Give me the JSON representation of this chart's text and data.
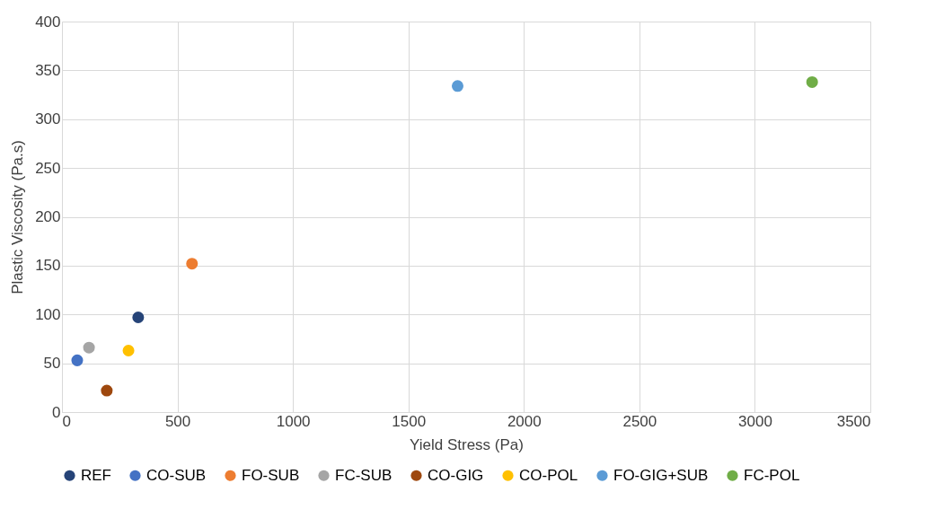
{
  "chart_data": {
    "type": "scatter",
    "xlabel": "Yield Stress (Pa)",
    "ylabel": "Plastic Viscosity (Pa.s)",
    "xlim": [
      0,
      3500
    ],
    "xticks": [
      0,
      500,
      1000,
      1500,
      2000,
      2500,
      3000,
      3500
    ],
    "ylim": [
      0,
      400
    ],
    "yticks": [
      0,
      50,
      100,
      150,
      200,
      250,
      300,
      350,
      400
    ],
    "grid": true,
    "legend": "bottom",
    "marker": "circle",
    "series": [
      {
        "name": "REF",
        "color": "#264478",
        "x": [
          330
        ],
        "values": [
          97
        ]
      },
      {
        "name": "CO-SUB",
        "color": "#4472c4",
        "x": [
          66
        ],
        "values": [
          53
        ]
      },
      {
        "name": "FO-SUB",
        "color": "#ed7d31",
        "x": [
          563
        ],
        "values": [
          152
        ]
      },
      {
        "name": "FC-SUB",
        "color": "#a5a5a5",
        "x": [
          117
        ],
        "values": [
          66
        ]
      },
      {
        "name": "CO-GIG",
        "color": "#9e480e",
        "x": [
          194
        ],
        "values": [
          22
        ]
      },
      {
        "name": "CO-POL",
        "color": "#ffc000",
        "x": [
          288
        ],
        "values": [
          63
        ]
      },
      {
        "name": "FO-GIG+SUB",
        "color": "#5b9bd5",
        "x": [
          1713
        ],
        "values": [
          334
        ]
      },
      {
        "name": "FC-POL",
        "color": "#70ad47",
        "x": [
          3248
        ],
        "values": [
          338
        ]
      }
    ]
  }
}
